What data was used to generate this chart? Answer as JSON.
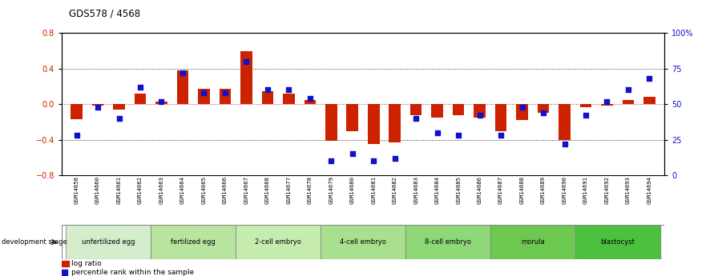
{
  "title": "GDS578 / 4568",
  "samples": [
    "GSM14658",
    "GSM14660",
    "GSM14661",
    "GSM14662",
    "GSM14663",
    "GSM14664",
    "GSM14665",
    "GSM14666",
    "GSM14667",
    "GSM14668",
    "GSM14677",
    "GSM14678",
    "GSM14679",
    "GSM14680",
    "GSM14681",
    "GSM14682",
    "GSM14683",
    "GSM14684",
    "GSM14685",
    "GSM14686",
    "GSM14687",
    "GSM14688",
    "GSM14689",
    "GSM14690",
    "GSM14691",
    "GSM14692",
    "GSM14693",
    "GSM14694"
  ],
  "log_ratio": [
    -0.17,
    -0.02,
    -0.06,
    0.12,
    0.03,
    0.38,
    0.17,
    0.17,
    0.6,
    0.15,
    0.12,
    0.05,
    -0.41,
    -0.3,
    -0.45,
    -0.43,
    -0.12,
    -0.15,
    -0.12,
    -0.15,
    -0.3,
    -0.18,
    -0.1,
    -0.4,
    -0.03,
    -0.02,
    0.05,
    0.08
  ],
  "percentile": [
    28,
    48,
    40,
    62,
    52,
    72,
    58,
    58,
    80,
    60,
    60,
    54,
    10,
    15,
    10,
    12,
    40,
    30,
    28,
    42,
    28,
    48,
    44,
    22,
    42,
    52,
    60,
    68
  ],
  "stages": [
    {
      "name": "unfertilized egg",
      "start": 0,
      "end": 4
    },
    {
      "name": "fertilized egg",
      "start": 4,
      "end": 8
    },
    {
      "name": "2-cell embryo",
      "start": 8,
      "end": 12
    },
    {
      "name": "4-cell embryo",
      "start": 12,
      "end": 16
    },
    {
      "name": "8-cell embryo",
      "start": 16,
      "end": 20
    },
    {
      "name": "morula",
      "start": 20,
      "end": 24
    },
    {
      "name": "blastocyst",
      "start": 24,
      "end": 28
    }
  ],
  "stage_colors": [
    "#d5edcc",
    "#b8e4a0",
    "#c6ecb0",
    "#a8e090",
    "#8ed878",
    "#6cc850",
    "#4ec040"
  ],
  "ylim": [
    -0.8,
    0.8
  ],
  "y2lim": [
    0,
    100
  ],
  "yticks": [
    -0.8,
    -0.4,
    0.0,
    0.4,
    0.8
  ],
  "y2ticks": [
    0,
    25,
    50,
    75,
    100
  ],
  "bar_color": "#cc2200",
  "dot_color": "#1111cc",
  "background_color": "#ffffff",
  "dev_stage_label": "development stage",
  "legend_log": "log ratio",
  "legend_pct": "percentile rank within the sample"
}
